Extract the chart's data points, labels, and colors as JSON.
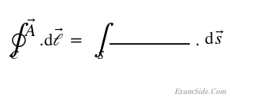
{
  "background_color": "#ffffff",
  "watermark_text": "ExamSide.Com",
  "watermark_color": "#b0b0b0",
  "watermark_fontsize": 7.5,
  "equation_color": "#000000",
  "figsize": [
    3.25,
    1.39
  ],
  "dpi": 100
}
